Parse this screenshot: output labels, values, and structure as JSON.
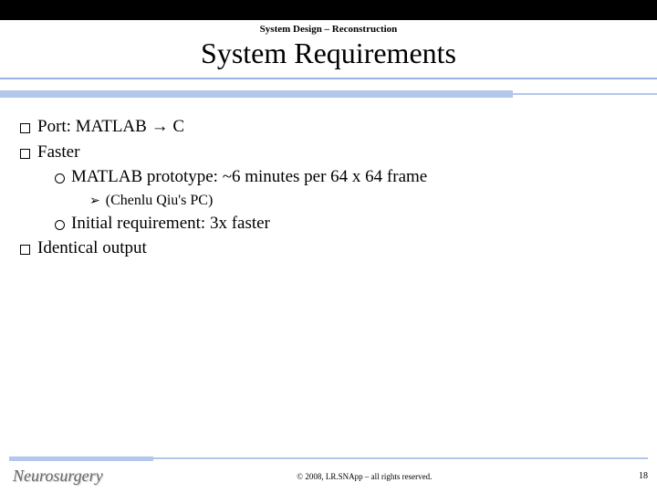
{
  "header": {
    "breadcrumb": "System Design – Reconstruction",
    "title": "System Requirements"
  },
  "bullets": {
    "port": "Port: MATLAB → C",
    "faster": "Faster",
    "matlab_proto": "MATLAB prototype: ~6 minutes per 64 x 64 frame",
    "chenlu": "(Chenlu Qiu's PC)",
    "initial_req": "Initial requirement: 3x faster",
    "identical": "Identical output"
  },
  "footer": {
    "logo": "Neurosurgery",
    "copyright": "© 2008, LR.SNApp – all rights reserved.",
    "page": "18"
  },
  "colors": {
    "accent_blue": "#b3c6ec",
    "top_bar": "#000000"
  }
}
